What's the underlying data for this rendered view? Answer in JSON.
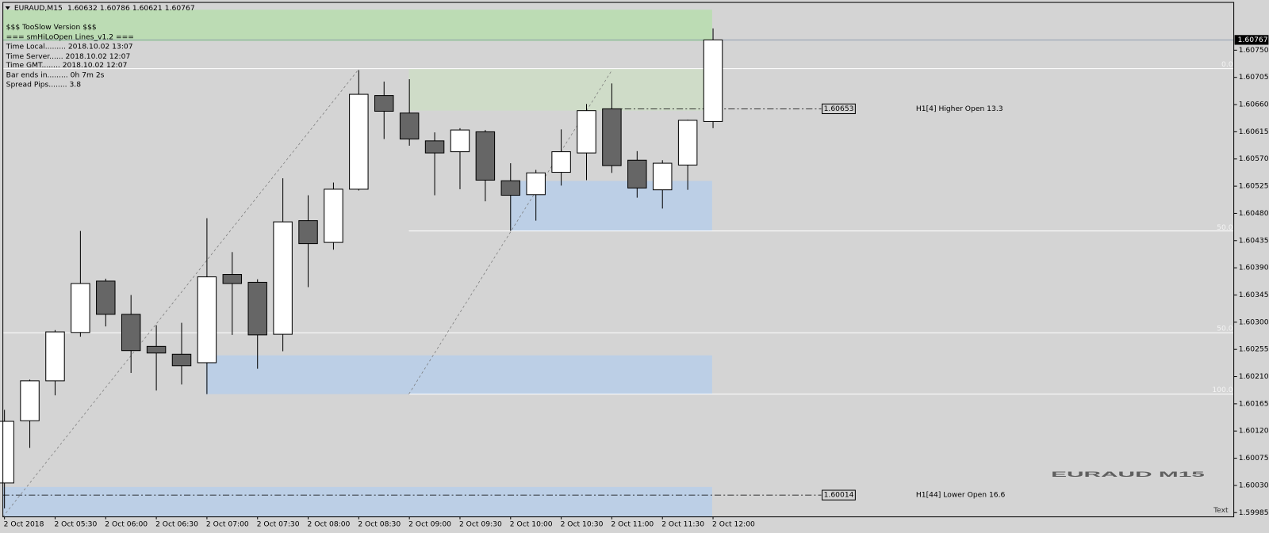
{
  "header": {
    "symbol": "EURAUD,M15"
  },
  "info_panel": [
    "$$$ TooSlow Version $$$",
    "=== smHiLoOpen Lines_v1.2 ===",
    "Time Local......... 2018.10.02 13:07",
    "Time Server...... 2018.10.02 12:07",
    "Time GMT........ 2018.10.02 12:07",
    "Bar ends in......... 0h 7m 2s",
    "Spread Pips........ 3.8"
  ],
  "chart_data": {
    "type": "candlestick",
    "categories": [
      "2 Oct 2018",
      null,
      "2 Oct 05:30",
      null,
      "2 Oct 06:00",
      null,
      "2 Oct 06:30",
      null,
      "2 Oct 07:00",
      null,
      "2 Oct 07:30",
      null,
      "2 Oct 08:00",
      null,
      "2 Oct 08:30",
      null,
      "2 Oct 09:00",
      null,
      "2 Oct 09:30",
      null,
      "2 Oct 10:00",
      null,
      "2 Oct 10:30",
      null,
      "2 Oct 11:00",
      null,
      "2 Oct 11:30",
      null,
      "2 Oct 12:00"
    ],
    "open": [
      1.60034,
      1.60137,
      1.60203,
      1.60283,
      1.60368,
      1.60313,
      1.6026,
      1.60247,
      1.60233,
      1.60379,
      1.60366,
      1.6028,
      1.60468,
      1.60432,
      1.6052,
      1.60675,
      1.60646,
      1.606,
      1.60582,
      1.60615,
      1.60534,
      1.60511,
      1.60548,
      1.6058,
      1.60653,
      1.60568,
      1.60519,
      1.6056,
      1.60632
    ],
    "high": [
      1.60155,
      1.60205,
      1.60287,
      1.60451,
      1.60372,
      1.60345,
      1.60295,
      1.60299,
      1.60472,
      1.60416,
      1.60371,
      1.60538,
      1.6051,
      1.60531,
      1.60717,
      1.60698,
      1.60702,
      1.60614,
      1.60621,
      1.60618,
      1.60563,
      1.60552,
      1.60619,
      1.60661,
      1.60695,
      1.60583,
      1.60568,
      1.60635,
      1.60786
    ],
    "low": [
      1.59992,
      1.60092,
      1.60179,
      1.60276,
      1.60293,
      1.60216,
      1.60187,
      1.60197,
      1.60181,
      1.60279,
      1.60223,
      1.60252,
      1.60358,
      1.6042,
      1.60518,
      1.60603,
      1.60592,
      1.6051,
      1.6052,
      1.605,
      1.60451,
      1.60468,
      1.60526,
      1.60535,
      1.60547,
      1.60506,
      1.60488,
      1.60519,
      1.60621
    ],
    "close": [
      1.60136,
      1.60203,
      1.60284,
      1.60364,
      1.60313,
      1.60253,
      1.60249,
      1.60228,
      1.60375,
      1.60364,
      1.60279,
      1.60466,
      1.6043,
      1.6052,
      1.60677,
      1.60649,
      1.60603,
      1.6058,
      1.60618,
      1.60535,
      1.6051,
      1.60547,
      1.60582,
      1.6065,
      1.60559,
      1.60522,
      1.60563,
      1.60634,
      1.60767
    ],
    "up_color": "#ffffff",
    "down_color": "#666666",
    "ylim": [
      1.59978,
      1.60829
    ],
    "yticks": [
      {
        "value": 1.6075,
        "label": "1.60750"
      },
      1.60705,
      {
        "value": 1.6066,
        "label": "1.60660"
      },
      1.60615,
      {
        "value": 1.6057,
        "label": "1.60570"
      },
      1.60525,
      {
        "value": 1.6048,
        "label": "1.60480"
      },
      1.60435,
      {
        "value": 1.6039,
        "label": "1.60390"
      },
      1.60345,
      {
        "value": 1.603,
        "label": "1.60300"
      },
      1.60255,
      {
        "value": 1.6021,
        "label": "1.60210"
      },
      1.60165,
      {
        "value": 1.6012,
        "label": "1.60120"
      },
      1.60075,
      {
        "value": 1.6003,
        "label": "1.60030"
      },
      1.59985
    ],
    "levels": [
      {
        "value": 1.60653,
        "text": "H1[4] Higher Open 13.3"
      },
      {
        "value": 1.60014,
        "text": "H1[44] Lower Open 16.6"
      }
    ],
    "fib_labels": [
      "0.0",
      "50.0",
      "50.0",
      "100.0"
    ],
    "watermark": "EURAUD M15",
    "corner_text": "Text"
  }
}
